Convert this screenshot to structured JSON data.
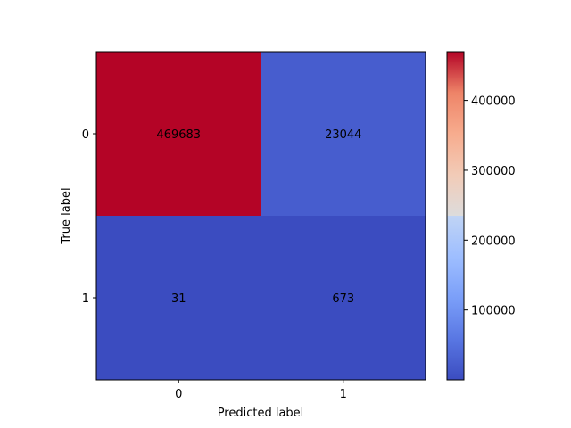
{
  "chart_data": {
    "type": "heatmap",
    "title": "",
    "xlabel": "Predicted label",
    "ylabel": "True label",
    "x_categories": [
      "0",
      "1"
    ],
    "y_categories": [
      "0",
      "1"
    ],
    "values": [
      [
        469683,
        23044
      ],
      [
        31,
        673
      ]
    ],
    "colormap": "coolwarm",
    "colorbar": {
      "ticks": [
        100000,
        200000,
        300000,
        400000
      ],
      "tick_labels": [
        "100000",
        "200000",
        "300000",
        "400000"
      ],
      "range": [
        31,
        469683
      ]
    },
    "colors": {
      "low": "#3b4cc0",
      "high": "#b40426"
    },
    "grid": false
  }
}
